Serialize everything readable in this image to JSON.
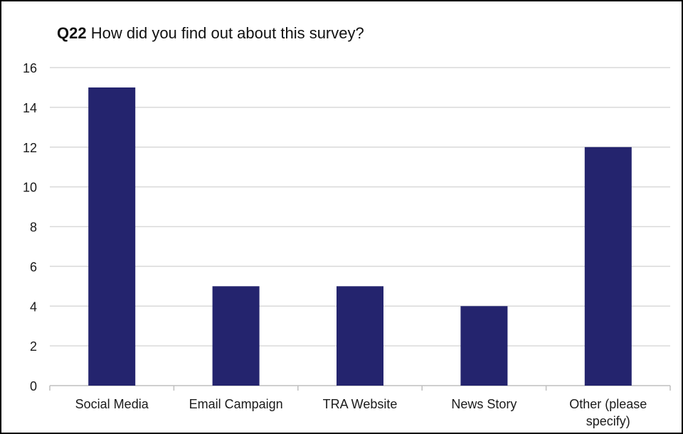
{
  "chart_data": {
    "type": "bar",
    "title_prefix": "Q22",
    "title": "How did you find out about this survey?",
    "categories": [
      [
        "Social Media"
      ],
      [
        "Email Campaign"
      ],
      [
        "TRA Website"
      ],
      [
        "News Story"
      ],
      [
        "Other (please",
        "specify)"
      ]
    ],
    "values": [
      15,
      5,
      5,
      4,
      12
    ],
    "ylim": [
      0,
      16
    ],
    "yticks": [
      0,
      2,
      4,
      6,
      8,
      10,
      12,
      14,
      16
    ],
    "grid": true,
    "bar_color": "#24246e",
    "grid_color": "#d9d9d9",
    "axis_color": "#bfbfbf"
  }
}
